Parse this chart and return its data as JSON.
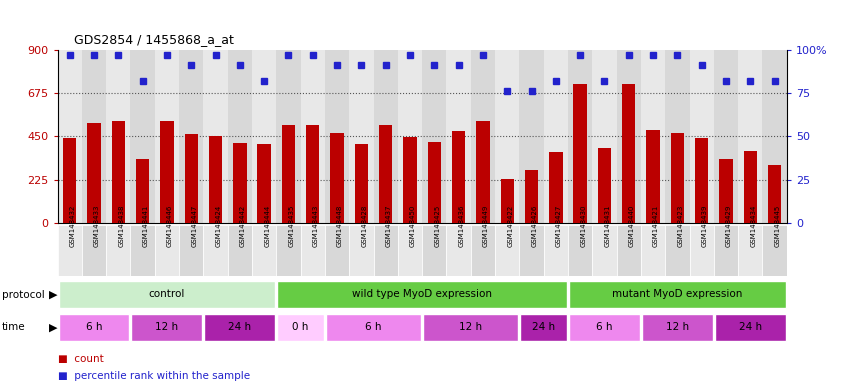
{
  "title": "GDS2854 / 1455868_a_at",
  "samples": [
    "GSM148432",
    "GSM148433",
    "GSM148438",
    "GSM148441",
    "GSM148446",
    "GSM148447",
    "GSM148424",
    "GSM148442",
    "GSM148444",
    "GSM148435",
    "GSM148443",
    "GSM148448",
    "GSM148428",
    "GSM148437",
    "GSM148450",
    "GSM148425",
    "GSM148436",
    "GSM148449",
    "GSM148422",
    "GSM148426",
    "GSM148427",
    "GSM148430",
    "GSM148431",
    "GSM148440",
    "GSM148421",
    "GSM148423",
    "GSM148439",
    "GSM148429",
    "GSM148434",
    "GSM148445"
  ],
  "counts": [
    440,
    520,
    530,
    330,
    530,
    460,
    450,
    415,
    410,
    510,
    510,
    465,
    410,
    510,
    445,
    420,
    480,
    530,
    230,
    275,
    370,
    720,
    390,
    725,
    485,
    465,
    440,
    330,
    375,
    300
  ],
  "percentiles": [
    97,
    97,
    97,
    82,
    97,
    91,
    97,
    91,
    82,
    97,
    97,
    91,
    91,
    91,
    97,
    91,
    91,
    97,
    76,
    76,
    82,
    97,
    82,
    97,
    97,
    97,
    91,
    82,
    82,
    82
  ],
  "ylim_left": [
    0,
    900
  ],
  "ylim_right": [
    0,
    100
  ],
  "yticks_left": [
    0,
    225,
    450,
    675,
    900
  ],
  "yticks_right": [
    0,
    25,
    50,
    75,
    100
  ],
  "bar_color": "#bb0000",
  "dot_color": "#2222cc",
  "gridline_color": "#555555",
  "protocol_groups": [
    {
      "label": "control",
      "start": 0,
      "end": 9,
      "color": "#cceecc"
    },
    {
      "label": "wild type MyoD expression",
      "start": 9,
      "end": 21,
      "color": "#66cc44"
    },
    {
      "label": "mutant MyoD expression",
      "start": 21,
      "end": 30,
      "color": "#66cc44"
    }
  ],
  "time_groups": [
    {
      "label": "6 h",
      "start": 0,
      "end": 3,
      "color": "#ee88ee"
    },
    {
      "label": "12 h",
      "start": 3,
      "end": 6,
      "color": "#cc55cc"
    },
    {
      "label": "24 h",
      "start": 6,
      "end": 9,
      "color": "#aa22aa"
    },
    {
      "label": "0 h",
      "start": 9,
      "end": 11,
      "color": "#ffccff"
    },
    {
      "label": "6 h",
      "start": 11,
      "end": 15,
      "color": "#ee88ee"
    },
    {
      "label": "12 h",
      "start": 15,
      "end": 19,
      "color": "#cc55cc"
    },
    {
      "label": "24 h",
      "start": 19,
      "end": 21,
      "color": "#aa22aa"
    },
    {
      "label": "6 h",
      "start": 21,
      "end": 24,
      "color": "#ee88ee"
    },
    {
      "label": "12 h",
      "start": 24,
      "end": 27,
      "color": "#cc55cc"
    },
    {
      "label": "24 h",
      "start": 27,
      "end": 30,
      "color": "#aa22aa"
    }
  ],
  "legend_count_color": "#bb0000",
  "legend_dot_color": "#2222cc"
}
